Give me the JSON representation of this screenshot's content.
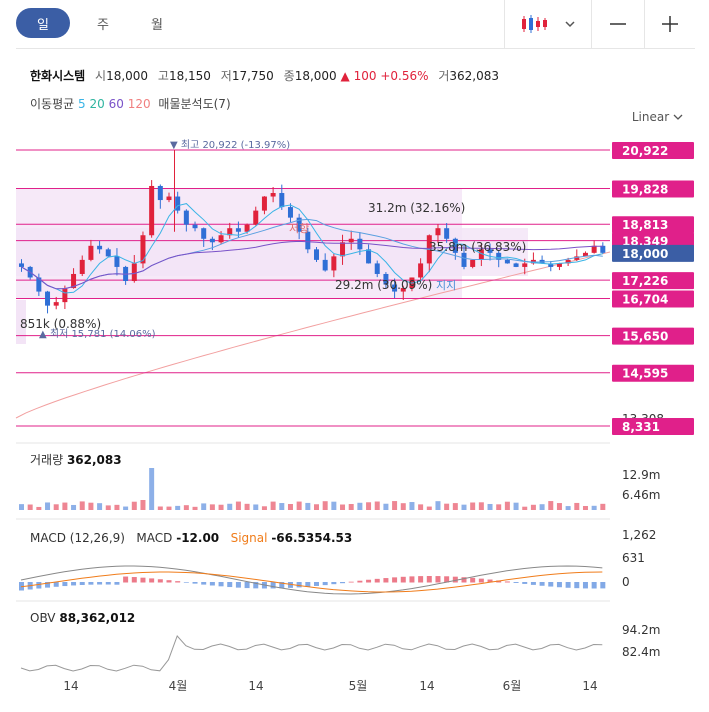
{
  "period_tabs": [
    "일",
    "주",
    "월"
  ],
  "active_tab": "일",
  "stock": {
    "name": "한화시스템",
    "open_label": "시",
    "open": "18,000",
    "high_label": "고",
    "high": "18,150",
    "low_label": "저",
    "low": "17,750",
    "close_label": "종",
    "close": "18,000",
    "change": "▲ 100",
    "change_pct": "+0.56%",
    "volume_label": "거",
    "volume": "362,083"
  },
  "ma_legend": {
    "label": "이동평균",
    "p5": "5",
    "p20": "20",
    "p60": "60",
    "p120": "120",
    "profile": "매물분석도(7)"
  },
  "scale_mode": "Linear",
  "colors": {
    "up": "#e0223b",
    "down": "#2f6fd6",
    "hline": "#e0208a",
    "current": "#3b5ea5",
    "ma5": "#3ab4e6",
    "ma20": "#5aa0e0",
    "ma60": "#7a52c8",
    "ma120": "#f2a0a0",
    "signal": "#f07c1a"
  },
  "chart_data": {
    "type": "candlestick",
    "x_ticks": [
      "14",
      "4월",
      "14",
      "5월",
      "14",
      "6월",
      "14"
    ],
    "price_axis_labels": [
      "20,922",
      "19,828",
      "18,813",
      "18,349",
      "18,000",
      "17,226",
      "16,704",
      "15,650",
      "14,595",
      "13,308",
      "8,331"
    ],
    "current_price": "18,000",
    "annotations": {
      "high": "▼ 최고 20,922 (-13.97%)",
      "low": "▲ 최저 15,781 (14.06%)",
      "vp1": "31.2m (32.16%)",
      "vp2": "35.8m (36.83%)",
      "vp3": "29.2m (30.09%)",
      "vp4": "851k (0.88%)",
      "resistance": "저항",
      "support": "지지"
    },
    "volume": {
      "label": "거래량",
      "value": "362,083",
      "axis": [
        "12.9m",
        "6.46m"
      ]
    },
    "macd": {
      "label": "MACD (12,26,9)",
      "macd_label": "MACD",
      "macd_value": "-12.00",
      "signal_label": "Signal",
      "signal_value": "-66.5354.53",
      "axis": [
        "1,262",
        "631",
        "0"
      ]
    },
    "obv": {
      "label": "OBV",
      "value": "88,362,012",
      "axis": [
        "94.2m",
        "82.4m"
      ]
    }
  }
}
